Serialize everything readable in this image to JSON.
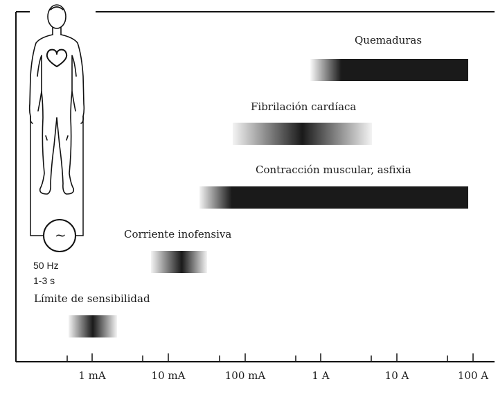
{
  "figure": {
    "axis": {
      "ticks": [
        "1 mA",
        "10 mA",
        "100 mA",
        "1 A",
        "10 A",
        "100 A"
      ],
      "scale": "log"
    },
    "bands": [
      {
        "id": "quemaduras",
        "label": "Quemaduras",
        "from": "1 A",
        "to": "100 A"
      },
      {
        "id": "fibrilacion",
        "label": "Fibrilación cardíaca",
        "from": "100 mA",
        "to": "10 A"
      },
      {
        "id": "contraccion",
        "label": "Contracción muscular, asfixia",
        "from": "10 mA",
        "to": "100 A"
      },
      {
        "id": "inofensiva",
        "label": "Corriente inofensiva",
        "from": "1 mA",
        "to": "10 mA"
      },
      {
        "id": "sensibilidad",
        "label": "Límite de sensibilidad",
        "from": "0.1 mA",
        "to": "1 mA"
      }
    ],
    "source": {
      "symbol": "~",
      "frequency": "50 Hz",
      "duration": "1-3 s"
    }
  },
  "colors": {
    "band": "#1a1a1a",
    "line": "#111111",
    "background": "#ffffff"
  }
}
